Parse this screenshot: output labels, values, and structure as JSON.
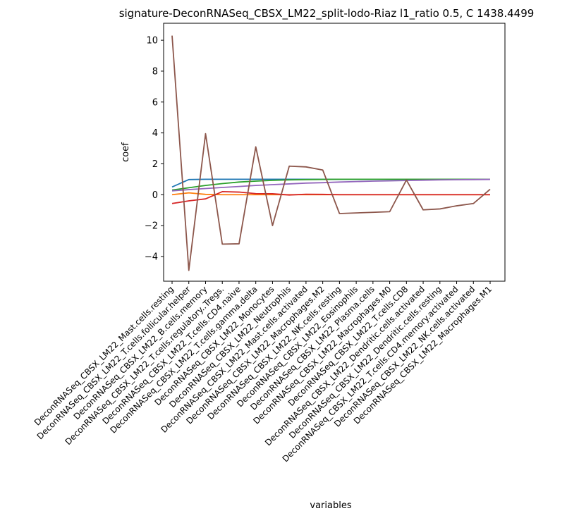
{
  "chart_data": {
    "type": "line",
    "title": "signature-DeconRNASeq_CBSX_LM22_split-lodo-Riaz l1_ratio 0.5, C 1438.4499",
    "xlabel": "variables",
    "ylabel": "coef",
    "ylim": [
      -5.6,
      11.1
    ],
    "yticks": [
      -4,
      -2,
      0,
      2,
      4,
      6,
      8,
      10
    ],
    "grid": false,
    "legend": "none",
    "categories": [
      "DeconRNASeq_CBSX_LM22_Mast.cells.resting",
      "DeconRNASeq_CBSX_LM22_T.cells.follicular.helper",
      "DeconRNASeq_CBSX_LM22_B.cells.memory",
      "DeconRNASeq_CBSX_LM22_T.cells.regulatory..Tregs.",
      "DeconRNASeq_CBSX_LM22_T.cells.CD4.naive",
      "DeconRNASeq_CBSX_LM22_T.cells.gamma.delta",
      "DeconRNASeq_CBSX_LM22_Monocytes",
      "DeconRNASeq_CBSX_LM22_Neutrophils",
      "DeconRNASeq_CBSX_LM22_Mast.cells.activated",
      "DeconRNASeq_CBSX_LM22_Macrophages.M2",
      "DeconRNASeq_CBSX_LM22_NK.cells.resting",
      "DeconRNASeq_CBSX_LM22_Eosinophils",
      "DeconRNASeq_CBSX_LM22_Plasma.cells",
      "DeconRNASeq_CBSX_LM22_Macrophages.M0",
      "DeconRNASeq_CBSX_LM22_T.cells.CD8",
      "DeconRNASeq_CBSX_LM22_Dendritic.cells.activated",
      "DeconRNASeq_CBSX_LM22_Dendritic.cells.resting",
      "DeconRNASeq_CBSX_LM22_T.cells.CD4.memory.activated",
      "DeconRNASeq_CBSX_LM22_NK.cells.activated",
      "DeconRNASeq_CBSX_LM22_Macrophages.M1"
    ],
    "series": [
      {
        "color": "#1f77b4",
        "values": [
          0.5,
          0.98,
          1.0,
          1.0,
          1.0,
          1.0,
          1.0,
          1.0,
          1.0,
          1.0,
          1.0,
          1.0,
          1.0,
          1.0,
          1.0,
          1.0,
          1.0,
          1.0,
          1.0,
          1.0
        ]
      },
      {
        "color": "#ff7f0e",
        "values": [
          0.0,
          0.12,
          0.02,
          0.0,
          0.0,
          0.0,
          0.0,
          0.0,
          0.0,
          0.0,
          0.0,
          0.0,
          0.0,
          0.0,
          0.0,
          0.0,
          0.0,
          0.0,
          0.0,
          0.0
        ]
      },
      {
        "color": "#2ca02c",
        "values": [
          0.3,
          0.45,
          0.6,
          0.72,
          0.82,
          0.88,
          0.93,
          0.96,
          0.98,
          0.99,
          1.0,
          1.0,
          1.0,
          1.0,
          1.0,
          1.0,
          1.0,
          1.0,
          1.0,
          1.0
        ]
      },
      {
        "color": "#d62728",
        "values": [
          -0.57,
          -0.4,
          -0.27,
          0.2,
          0.17,
          0.07,
          0.06,
          -0.02,
          0.03,
          0.02,
          0.0,
          0.0,
          0.0,
          0.0,
          0.0,
          0.0,
          0.0,
          0.0,
          0.0,
          0.0
        ]
      },
      {
        "color": "#9467bd",
        "values": [
          0.25,
          0.33,
          0.4,
          0.47,
          0.53,
          0.6,
          0.65,
          0.7,
          0.75,
          0.78,
          0.82,
          0.85,
          0.88,
          0.9,
          0.92,
          0.94,
          0.96,
          0.97,
          0.98,
          0.99
        ]
      },
      {
        "color": "#8c564b",
        "values": [
          10.3,
          -4.9,
          3.95,
          -3.2,
          -3.18,
          3.1,
          -2.0,
          1.85,
          1.8,
          1.6,
          -1.22,
          -1.18,
          -1.14,
          -1.1,
          0.95,
          -0.98,
          -0.92,
          -0.72,
          -0.57,
          0.35
        ]
      }
    ]
  }
}
